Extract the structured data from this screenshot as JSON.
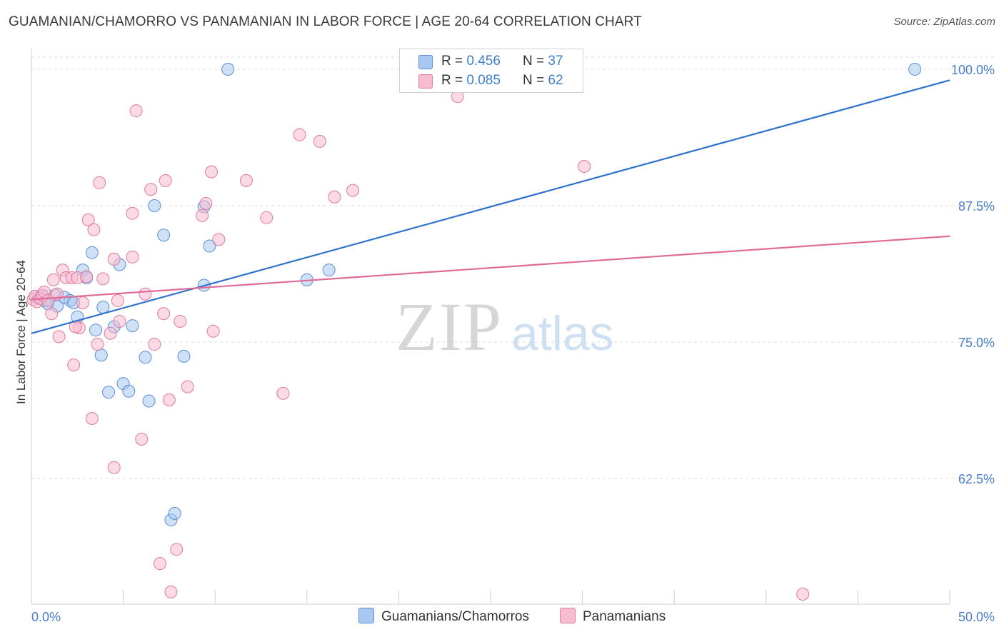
{
  "title": "GUAMANIAN/CHAMORRO VS PANAMANIAN IN LABOR FORCE | AGE 20-64 CORRELATION CHART",
  "source": "Source: ZipAtlas.com",
  "watermark": {
    "zip": "ZIP",
    "atlas": "atlas"
  },
  "legend": {
    "rows": [
      {
        "r_label": "R = ",
        "r_value": "0.456",
        "n_label": "N = ",
        "n_value": "37",
        "color": "#a8c8f0",
        "border": "#5b8fd6"
      },
      {
        "r_label": "R = ",
        "r_value": "0.085",
        "n_label": "N = ",
        "n_value": "62",
        "color": "#f7bcd0",
        "border": "#e07aa0"
      }
    ]
  },
  "bottom_legend": [
    {
      "label": "Guamanians/Chamorros",
      "color": "#a8c8f0",
      "border": "#5b8fd6"
    },
    {
      "label": "Panamanians",
      "color": "#f7bcd0",
      "border": "#e07aa0"
    }
  ],
  "chart_data": {
    "type": "scatter",
    "xlabel": "",
    "ylabel": "In Labor Force | Age 20-64",
    "xlim": [
      0,
      50
    ],
    "ylim": [
      50.0,
      101.5
    ],
    "x_tick_labels": [
      "0.0%",
      "50.0%"
    ],
    "y_ticks": [
      62.5,
      75.0,
      87.5,
      100.0
    ],
    "y_tick_labels": [
      "62.5%",
      "75.0%",
      "87.5%",
      "100.0%"
    ],
    "grid": true,
    "legend_position": "top-center",
    "series": [
      {
        "name": "Guamanians/Chamorros",
        "color": "#5b8fd6",
        "fill": "#a8c8f0",
        "trend": {
          "x": [
            0,
            50
          ],
          "y": [
            75.8,
            99.0
          ],
          "color": "#2f72cc"
        },
        "points": [
          [
            0.2,
            79.2
          ],
          [
            0.4,
            79.0
          ],
          [
            0.6,
            79.2
          ],
          [
            0.7,
            78.8
          ],
          [
            0.9,
            78.5
          ],
          [
            1.3,
            79.3
          ],
          [
            1.4,
            78.3
          ],
          [
            1.8,
            79.1
          ],
          [
            2.1,
            78.8
          ],
          [
            2.3,
            78.6
          ],
          [
            2.5,
            77.3
          ],
          [
            2.8,
            81.6
          ],
          [
            3.0,
            80.9
          ],
          [
            3.3,
            83.2
          ],
          [
            3.5,
            76.1
          ],
          [
            3.8,
            73.8
          ],
          [
            3.9,
            78.2
          ],
          [
            4.2,
            70.4
          ],
          [
            4.5,
            76.4
          ],
          [
            4.8,
            82.1
          ],
          [
            5.0,
            71.2
          ],
          [
            5.3,
            70.5
          ],
          [
            5.5,
            76.5
          ],
          [
            6.2,
            73.6
          ],
          [
            6.4,
            69.6
          ],
          [
            6.7,
            87.5
          ],
          [
            7.2,
            84.8
          ],
          [
            7.6,
            58.7
          ],
          [
            7.8,
            59.3
          ],
          [
            8.3,
            73.7
          ],
          [
            9.4,
            80.2
          ],
          [
            9.4,
            87.4
          ],
          [
            9.7,
            83.8
          ],
          [
            10.7,
            100.0
          ],
          [
            15.0,
            80.7
          ],
          [
            16.2,
            81.6
          ],
          [
            48.1,
            100.0
          ]
        ]
      },
      {
        "name": "Panamanians",
        "color": "#e07aa0",
        "fill": "#f7bcd0",
        "trend": {
          "x": [
            0,
            50
          ],
          "y": [
            78.9,
            84.7
          ],
          "color": "#e06a96"
        },
        "points": [
          [
            0.1,
            78.9
          ],
          [
            0.2,
            79.2
          ],
          [
            0.3,
            78.7
          ],
          [
            0.5,
            79.0
          ],
          [
            0.6,
            79.3
          ],
          [
            0.7,
            79.6
          ],
          [
            0.9,
            78.8
          ],
          [
            1.1,
            77.6
          ],
          [
            1.2,
            80.7
          ],
          [
            1.4,
            79.4
          ],
          [
            1.5,
            75.5
          ],
          [
            1.7,
            81.6
          ],
          [
            1.9,
            80.9
          ],
          [
            2.2,
            80.9
          ],
          [
            2.3,
            72.9
          ],
          [
            2.5,
            80.9
          ],
          [
            2.6,
            76.3
          ],
          [
            2.8,
            78.6
          ],
          [
            3.0,
            81.0
          ],
          [
            3.1,
            86.2
          ],
          [
            3.3,
            68.0
          ],
          [
            3.4,
            85.3
          ],
          [
            3.6,
            74.8
          ],
          [
            3.7,
            89.6
          ],
          [
            3.9,
            80.8
          ],
          [
            4.3,
            75.8
          ],
          [
            4.5,
            63.5
          ],
          [
            4.5,
            82.6
          ],
          [
            4.7,
            78.8
          ],
          [
            4.8,
            76.9
          ],
          [
            5.5,
            82.8
          ],
          [
            5.5,
            86.8
          ],
          [
            5.7,
            96.2
          ],
          [
            6.0,
            66.1
          ],
          [
            6.2,
            79.4
          ],
          [
            6.5,
            89.0
          ],
          [
            6.7,
            74.8
          ],
          [
            7.0,
            54.7
          ],
          [
            7.2,
            77.6
          ],
          [
            7.3,
            89.8
          ],
          [
            7.5,
            69.7
          ],
          [
            7.6,
            52.1
          ],
          [
            7.9,
            56.0
          ],
          [
            8.1,
            76.9
          ],
          [
            8.5,
            70.9
          ],
          [
            9.3,
            86.6
          ],
          [
            9.5,
            87.7
          ],
          [
            9.8,
            90.6
          ],
          [
            9.9,
            76.0
          ],
          [
            10.2,
            84.4
          ],
          [
            11.7,
            89.8
          ],
          [
            12.8,
            86.4
          ],
          [
            13.7,
            70.3
          ],
          [
            14.6,
            94.0
          ],
          [
            15.7,
            93.4
          ],
          [
            16.5,
            88.3
          ],
          [
            17.5,
            88.9
          ],
          [
            23.0,
            98.5
          ],
          [
            23.2,
            97.5
          ],
          [
            30.1,
            91.1
          ],
          [
            42.0,
            51.9
          ],
          [
            2.4,
            76.4
          ]
        ]
      }
    ]
  }
}
